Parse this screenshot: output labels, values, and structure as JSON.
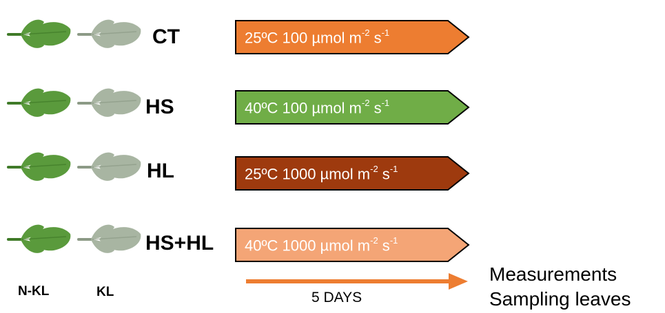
{
  "conditions": [
    {
      "label": "CT",
      "temp": "25ºC",
      "light": "100 µmol m",
      "exp1": "-2",
      "unit2": " s",
      "exp2": "-1",
      "color": "#ed7d31"
    },
    {
      "label": "HS",
      "temp": "40ºC",
      "light": "100 µmol m",
      "exp1": "-2",
      "unit2": " s",
      "exp2": "-1",
      "color": "#70ad47"
    },
    {
      "label": "HL",
      "temp": "25ºC",
      "light": "1000 µmol m",
      "exp1": "-2",
      "unit2": " s",
      "exp2": "-1",
      "color": "#9e3a0e"
    },
    {
      "label": "HS+HL",
      "temp": "40ºC",
      "light": "1000 µmol m",
      "exp1": "-2",
      "unit2": " s",
      "exp2": "-1",
      "color": "#f4a576"
    }
  ],
  "columns": {
    "nkl": "N-KL",
    "kl": "KL"
  },
  "timeline": {
    "label": "5 DAYS",
    "color": "#ed7d31"
  },
  "outcomes": [
    "Measurements",
    "Sampling leaves"
  ],
  "leaf_colors": {
    "nkl": "#5a9a3c",
    "kl": "#a8b5a2"
  }
}
